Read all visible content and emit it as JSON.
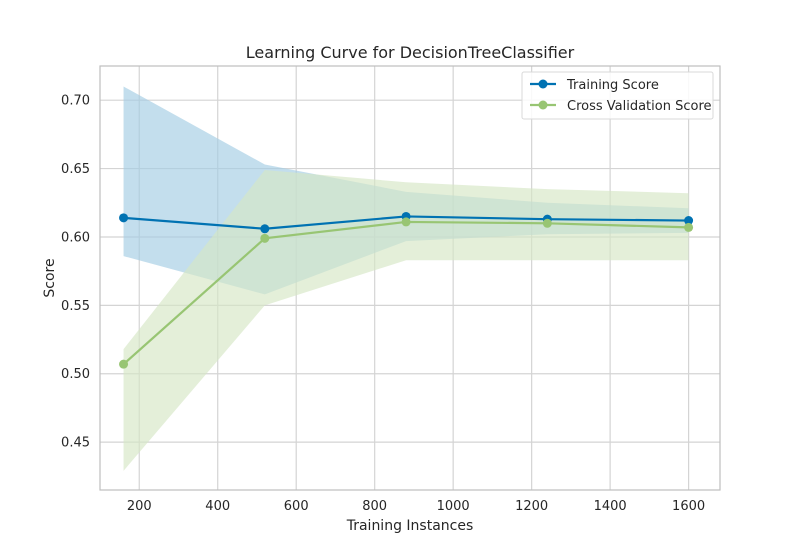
{
  "chart_data": {
    "type": "line",
    "title": "Learning Curve for DecisionTreeClassifier",
    "xlabel": "Training Instances",
    "ylabel": "Score",
    "xlim": [
      100,
      1680
    ],
    "ylim": [
      0.415,
      0.725
    ],
    "x_ticks": [
      200,
      400,
      600,
      800,
      1000,
      1200,
      1400,
      1600
    ],
    "y_ticks": [
      0.45,
      0.5,
      0.55,
      0.6,
      0.65,
      0.7
    ],
    "grid": true,
    "legend_position": "top-right",
    "x": [
      160,
      520,
      880,
      1240,
      1600
    ],
    "series": [
      {
        "name": "Training Score",
        "color": "#0072b2",
        "band_color": "#a3cde3",
        "values": [
          0.614,
          0.606,
          0.615,
          0.613,
          0.612
        ],
        "lower": [
          0.586,
          0.558,
          0.597,
          0.602,
          0.603
        ],
        "upper": [
          0.71,
          0.653,
          0.633,
          0.625,
          0.621
        ]
      },
      {
        "name": "Cross Validation Score",
        "color": "#98c573",
        "band_color": "#d6e7c5",
        "values": [
          0.507,
          0.599,
          0.611,
          0.61,
          0.607
        ],
        "lower": [
          0.429,
          0.55,
          0.583,
          0.583,
          0.583
        ],
        "upper": [
          0.518,
          0.649,
          0.64,
          0.635,
          0.632
        ]
      }
    ]
  }
}
